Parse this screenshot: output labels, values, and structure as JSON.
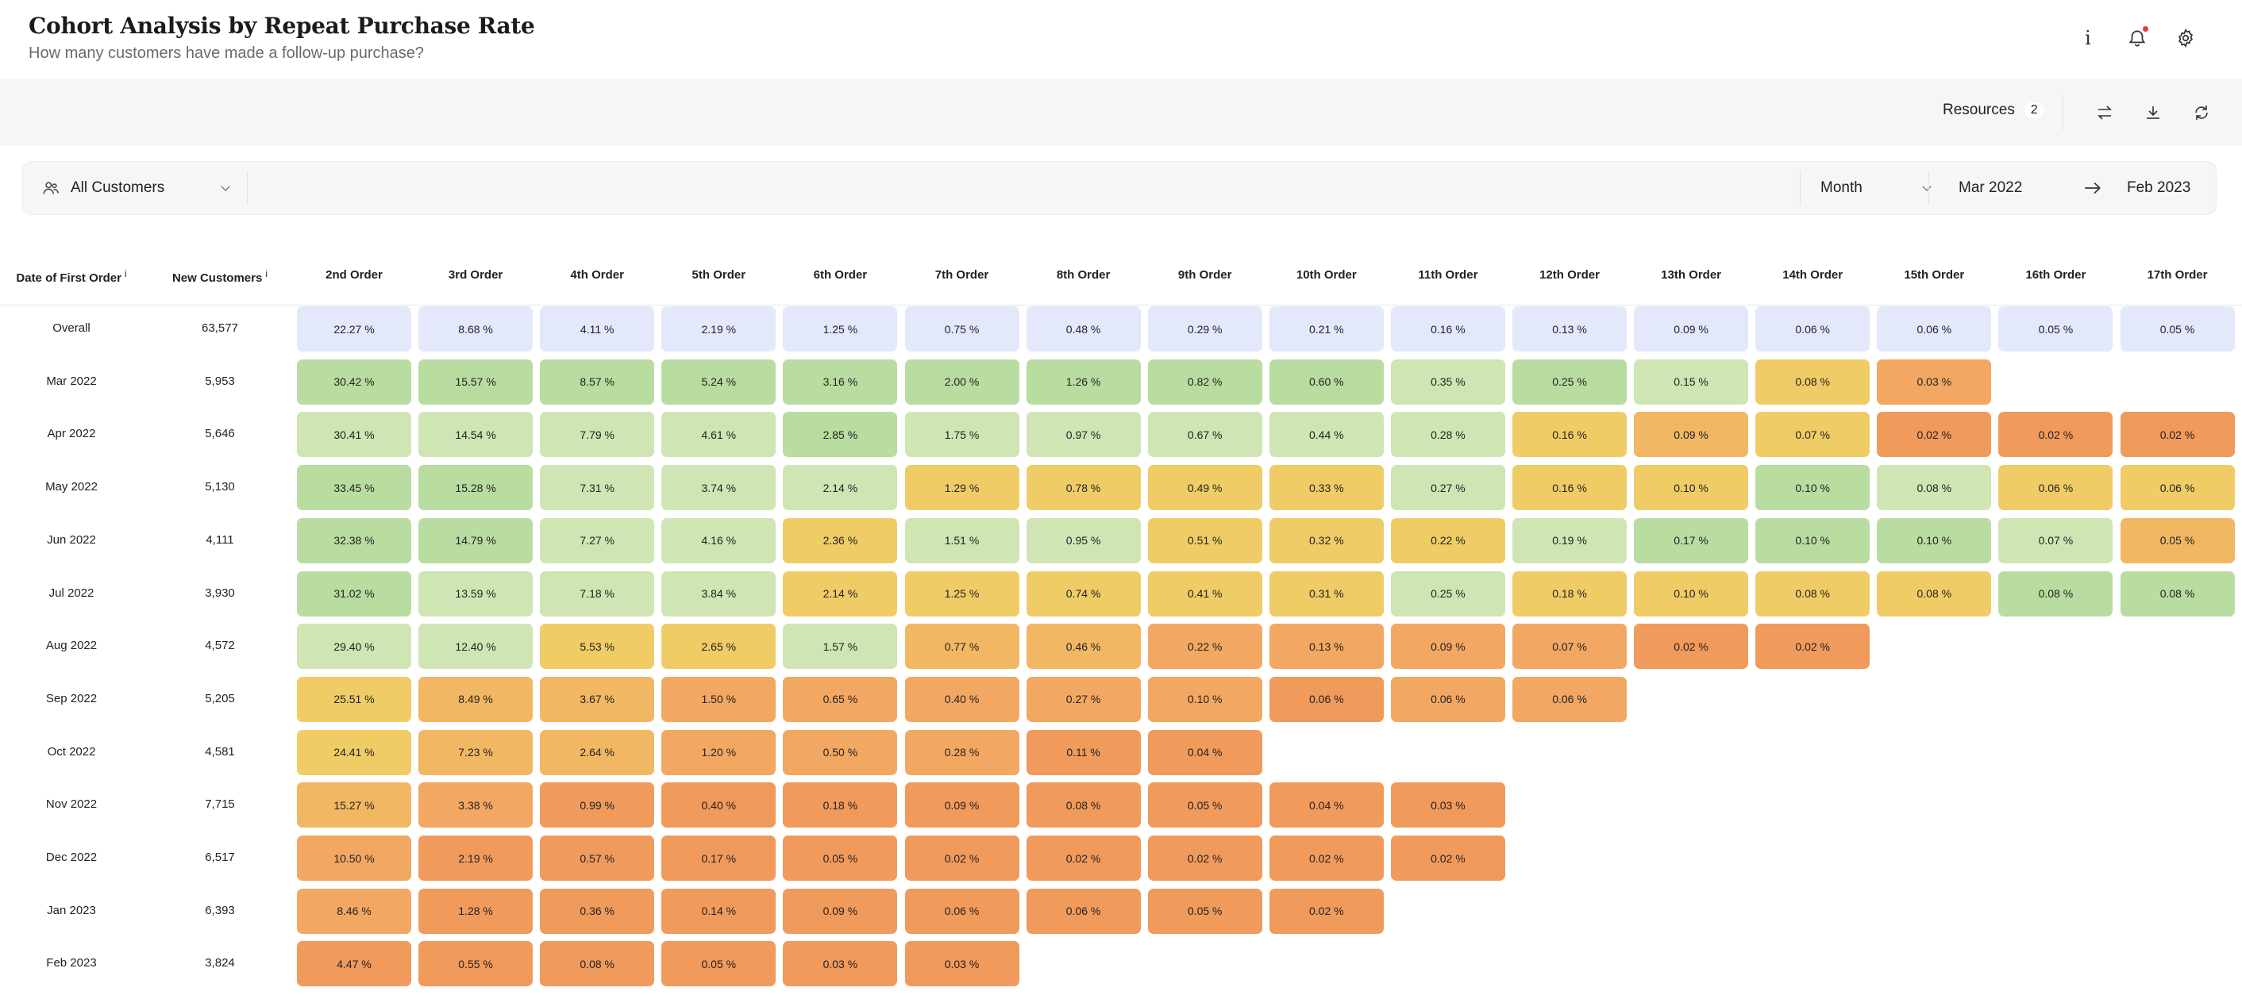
{
  "header": {
    "title": "Cohort Analysis by Repeat Purchase Rate",
    "subtitle": "How many customers have made a follow-up purchase?",
    "icons": [
      "info-icon",
      "bell-icon",
      "gear-icon"
    ]
  },
  "toolbar": {
    "resources_label": "Resources",
    "resources_count": "2",
    "icons": [
      "swap-icon",
      "download-icon",
      "refresh-icon"
    ]
  },
  "filters": {
    "segment": "All Customers",
    "period": "Month",
    "range_start": "Mar 2022",
    "range_end": "Feb 2023"
  },
  "table": {
    "col_date": "Date of First Order",
    "col_new": "New Customers",
    "info_glyph": "i",
    "orders": [
      "2nd Order",
      "3rd Order",
      "4th Order",
      "5th Order",
      "6th Order",
      "7th Order",
      "8th Order",
      "9th Order",
      "10th Order",
      "11th Order",
      "12th Order",
      "13th Order",
      "14th Order",
      "15th Order",
      "16th Order",
      "17th Order"
    ],
    "rows": [
      {
        "label": "Overall",
        "count": "63,577",
        "values": [
          "22.27 %",
          "8.68 %",
          "4.11 %",
          "2.19 %",
          "1.25 %",
          "0.75 %",
          "0.48 %",
          "0.29 %",
          "0.21 %",
          "0.16 %",
          "0.13 %",
          "0.09 %",
          "0.06 %",
          "0.06 %",
          "0.05 %",
          "0.05 %"
        ]
      },
      {
        "label": "Mar 2022",
        "count": "5,953",
        "values": [
          "30.42 %",
          "15.57 %",
          "8.57 %",
          "5.24 %",
          "3.16 %",
          "2.00 %",
          "1.26 %",
          "0.82 %",
          "0.60 %",
          "0.35 %",
          "0.25 %",
          "0.15 %",
          "0.08 %",
          "0.03 %"
        ]
      },
      {
        "label": "Apr 2022",
        "count": "5,646",
        "values": [
          "30.41 %",
          "14.54 %",
          "7.79 %",
          "4.61 %",
          "2.85 %",
          "1.75 %",
          "0.97 %",
          "0.67 %",
          "0.44 %",
          "0.28 %",
          "0.16 %",
          "0.09 %",
          "0.07 %",
          "0.02 %",
          "0.02 %",
          "0.02 %"
        ]
      },
      {
        "label": "May 2022",
        "count": "5,130",
        "values": [
          "33.45 %",
          "15.28 %",
          "7.31 %",
          "3.74 %",
          "2.14 %",
          "1.29 %",
          "0.78 %",
          "0.49 %",
          "0.33 %",
          "0.27 %",
          "0.16 %",
          "0.10 %",
          "0.10 %",
          "0.08 %",
          "0.06 %",
          "0.06 %"
        ]
      },
      {
        "label": "Jun 2022",
        "count": "4,111",
        "values": [
          "32.38 %",
          "14.79 %",
          "7.27 %",
          "4.16 %",
          "2.36 %",
          "1.51 %",
          "0.95 %",
          "0.51 %",
          "0.32 %",
          "0.22 %",
          "0.19 %",
          "0.17 %",
          "0.10 %",
          "0.10 %",
          "0.07 %",
          "0.05 %"
        ]
      },
      {
        "label": "Jul 2022",
        "count": "3,930",
        "values": [
          "31.02 %",
          "13.59 %",
          "7.18 %",
          "3.84 %",
          "2.14 %",
          "1.25 %",
          "0.74 %",
          "0.41 %",
          "0.31 %",
          "0.25 %",
          "0.18 %",
          "0.10 %",
          "0.08 %",
          "0.08 %",
          "0.08 %",
          "0.08 %"
        ]
      },
      {
        "label": "Aug 2022",
        "count": "4,572",
        "values": [
          "29.40 %",
          "12.40 %",
          "5.53 %",
          "2.65 %",
          "1.57 %",
          "0.77 %",
          "0.46 %",
          "0.22 %",
          "0.13 %",
          "0.09 %",
          "0.07 %",
          "0.02 %",
          "0.02 %"
        ]
      },
      {
        "label": "Sep 2022",
        "count": "5,205",
        "values": [
          "25.51 %",
          "8.49 %",
          "3.67 %",
          "1.50 %",
          "0.65 %",
          "0.40 %",
          "0.27 %",
          "0.10 %",
          "0.06 %",
          "0.06 %",
          "0.06 %"
        ]
      },
      {
        "label": "Oct 2022",
        "count": "4,581",
        "values": [
          "24.41 %",
          "7.23 %",
          "2.64 %",
          "1.20 %",
          "0.50 %",
          "0.28 %",
          "0.11 %",
          "0.04 %"
        ]
      },
      {
        "label": "Nov 2022",
        "count": "7,715",
        "values": [
          "15.27 %",
          "3.38 %",
          "0.99 %",
          "0.40 %",
          "0.18 %",
          "0.09 %",
          "0.08 %",
          "0.05 %",
          "0.04 %",
          "0.03 %"
        ]
      },
      {
        "label": "Dec 2022",
        "count": "6,517",
        "values": [
          "10.50 %",
          "2.19 %",
          "0.57 %",
          "0.17 %",
          "0.05 %",
          "0.02 %",
          "0.02 %",
          "0.02 %",
          "0.02 %",
          "0.02 %"
        ]
      },
      {
        "label": "Jan 2023",
        "count": "6,393",
        "values": [
          "8.46 %",
          "1.28 %",
          "0.36 %",
          "0.14 %",
          "0.09 %",
          "0.06 %",
          "0.06 %",
          "0.05 %",
          "0.02 %"
        ]
      },
      {
        "label": "Feb 2023",
        "count": "3,824",
        "values": [
          "4.47 %",
          "0.55 %",
          "0.08 %",
          "0.05 %",
          "0.03 %",
          "0.03 %"
        ]
      }
    ],
    "colors": {
      "overall": "#e3e8fb",
      "scale": [
        "#f09a5c",
        "#f2a862",
        "#f2b763",
        "#f0cc66",
        "#cfe5b3",
        "#b9dca0",
        "#a3d48e",
        "#8cca7f",
        "#75bf6c"
      ]
    },
    "cell_colors": [
      [],
      [
        5,
        5,
        5,
        5,
        5,
        5,
        5,
        5,
        5,
        4,
        5,
        4,
        3,
        1
      ],
      [
        4,
        4,
        4,
        4,
        5,
        4,
        4,
        4,
        4,
        4,
        3,
        2,
        3,
        0,
        0,
        0
      ],
      [
        5,
        5,
        4,
        4,
        4,
        3,
        3,
        3,
        3,
        4,
        3,
        3,
        5,
        4,
        3,
        3
      ],
      [
        5,
        5,
        4,
        4,
        3,
        4,
        4,
        3,
        3,
        3,
        4,
        5,
        5,
        5,
        4,
        2
      ],
      [
        5,
        4,
        4,
        4,
        3,
        3,
        3,
        3,
        3,
        4,
        3,
        3,
        3,
        3,
        5,
        5
      ],
      [
        4,
        4,
        3,
        3,
        4,
        2,
        2,
        1,
        1,
        1,
        1,
        0,
        0
      ],
      [
        3,
        2,
        2,
        1,
        1,
        1,
        1,
        1,
        0,
        1,
        1
      ],
      [
        3,
        2,
        2,
        1,
        1,
        1,
        0,
        0
      ],
      [
        2,
        1,
        0,
        0,
        0,
        0,
        0,
        0,
        0,
        0
      ],
      [
        1,
        0,
        0,
        0,
        0,
        0,
        0,
        0,
        0,
        0
      ],
      [
        1,
        0,
        0,
        0,
        0,
        0,
        0,
        0,
        0
      ],
      [
        0,
        0,
        0,
        0,
        0,
        0
      ]
    ]
  }
}
